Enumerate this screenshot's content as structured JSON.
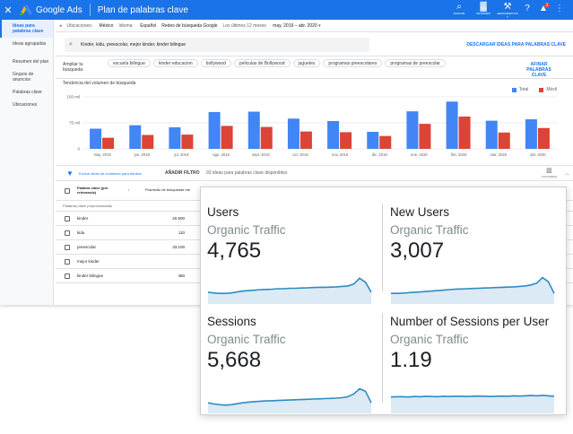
{
  "ads": {
    "brand": "Google Ads",
    "page_title": "Plan de palabras clave",
    "toolbar": [
      {
        "icon": "search-icon",
        "glyph": "⌕",
        "label": "BUSCAR"
      },
      {
        "icon": "report-icon",
        "glyph": "▓",
        "label": "INFORMES"
      },
      {
        "icon": "wrench-icon",
        "glyph": "⚒",
        "label": "HERRAMIENTAS Y CONFIGURACIÓN"
      }
    ],
    "help_glyph": "?",
    "bell_glyph": "▲",
    "bell_count": "1",
    "more_glyph": "⋮",
    "sidebar": [
      {
        "label": "Ideas para palabras clave",
        "active": true
      },
      {
        "label": "Ideas agrupadas",
        "active": false
      },
      {
        "label": "Resumen del plan",
        "active": false
      },
      {
        "label": "Grupos de anuncios",
        "active": false
      },
      {
        "label": "Palabras clave",
        "active": false
      },
      {
        "label": "Ubicaciones",
        "active": false
      }
    ],
    "filters": {
      "ubicaciones_label": "Ubicaciones:",
      "ubicaciones": "México",
      "idioma_label": "Idioma:",
      "idioma": "Español",
      "redes": "Redes de búsqueda Google",
      "periodo_label": "Los últimos 12 meses",
      "periodo": "may. 2019 – abr. 2020"
    },
    "search_text": "Kinder, kidu, preescolar, mejor kinder, kinder bilingue",
    "download_label": "DESCARGAR IDEAS PARA PALABRAS CLAVE",
    "refine_label": "Ampliar tu búsqueda:",
    "refine_chips": [
      "escuela bilingue",
      "kinder educacion",
      "bollywood",
      "peliculas de Bollywood",
      "juguetes",
      "programas preescolares",
      "programas de preescolar"
    ],
    "refine_link": "AFINAR PALABRAS CLAVE",
    "chart_title": "Tendencia del volumen de búsqueda",
    "add_filter": "AÑADIR FILTRO",
    "exclude_label": "Excluir ideas de contenido para adultos",
    "count_label": "93 ideas para palabras clave disponibles",
    "columns_label": "COLUMNAS",
    "table": {
      "col1": "Palabra clave (por relevancia)",
      "col2": "Promedio de búsquedas me",
      "group_label": "Palabras clave proporcionadas",
      "rows": [
        {
          "keyword": "kinder",
          "searches": "40.500"
        },
        {
          "keyword": "kidu",
          "searches": "110"
        },
        {
          "keyword": "preescolar",
          "searches": "33.100"
        },
        {
          "keyword": "mejor kinder",
          "searches": ""
        },
        {
          "keyword": "kinder bilingue",
          "searches": "480"
        }
      ]
    }
  },
  "chart_data": {
    "type": "bar",
    "title": "Tendencia del volumen de búsqueda",
    "categories": [
      "may. 2019",
      "jun. 2019",
      "jul. 2019",
      "ago. 2019",
      "sept. 2019",
      "oct. 2019",
      "nov. 2019",
      "dic. 2019",
      "ene. 2020",
      "feb. 2020",
      "mar. 2020",
      "abr. 2020"
    ],
    "ylim": [
      0,
      160000
    ],
    "yticks": [
      "150 mil",
      "75 mil",
      "0"
    ],
    "yticks_values": [
      150000,
      75000,
      0
    ],
    "series": [
      {
        "name": "Total",
        "color": "#4285f4",
        "values": [
          58000,
          68000,
          62000,
          106000,
          107000,
          87000,
          80000,
          49000,
          108000,
          136000,
          81000,
          85000
        ]
      },
      {
        "name": "Móvil",
        "color": "#db4437",
        "values": [
          32000,
          40000,
          41000,
          66000,
          63000,
          50000,
          48000,
          37000,
          72000,
          93000,
          47000,
          60000
        ]
      }
    ],
    "legend_position": "top-right"
  },
  "analytics": {
    "metrics": [
      {
        "title": "Users",
        "subtitle": "Organic Traffic",
        "value": "4,765",
        "trend": [
          0.35,
          0.32,
          0.3,
          0.3,
          0.32,
          0.36,
          0.4,
          0.42,
          0.44,
          0.46,
          0.47,
          0.48,
          0.5,
          0.5,
          0.52,
          0.52,
          0.53,
          0.54,
          0.55,
          0.56,
          0.56,
          0.57,
          0.58,
          0.6,
          0.62,
          0.7,
          0.95,
          0.78,
          0.35
        ]
      },
      {
        "title": "New Users",
        "subtitle": "Organic Traffic",
        "value": "3,007",
        "trend": [
          0.3,
          0.3,
          0.31,
          0.33,
          0.35,
          0.36,
          0.38,
          0.4,
          0.42,
          0.44,
          0.46,
          0.48,
          0.49,
          0.5,
          0.51,
          0.52,
          0.53,
          0.54,
          0.55,
          0.56,
          0.57,
          0.58,
          0.6,
          0.62,
          0.66,
          0.74,
          0.98,
          0.8,
          0.3
        ]
      },
      {
        "title": "Sessions",
        "subtitle": "Organic Traffic",
        "value": "5,668",
        "trend": [
          0.3,
          0.25,
          0.22,
          0.2,
          0.22,
          0.26,
          0.3,
          0.33,
          0.35,
          0.37,
          0.38,
          0.39,
          0.4,
          0.41,
          0.42,
          0.43,
          0.44,
          0.45,
          0.46,
          0.47,
          0.48,
          0.49,
          0.5,
          0.52,
          0.56,
          0.68,
          0.9,
          0.8,
          0.3
        ]
      },
      {
        "title": "Number of Sessions per User",
        "subtitle": "Organic Traffic",
        "value": "1.19",
        "trend": [
          0.55,
          0.56,
          0.56,
          0.55,
          0.57,
          0.56,
          0.58,
          0.57,
          0.56,
          0.58,
          0.57,
          0.58,
          0.58,
          0.57,
          0.58,
          0.59,
          0.58,
          0.57,
          0.58,
          0.59,
          0.58,
          0.6,
          0.59,
          0.6,
          0.61,
          0.6,
          0.62,
          0.6,
          0.58
        ]
      }
    ],
    "line_color": "#2e8bc0",
    "fill_color": "#dbeaf5"
  }
}
